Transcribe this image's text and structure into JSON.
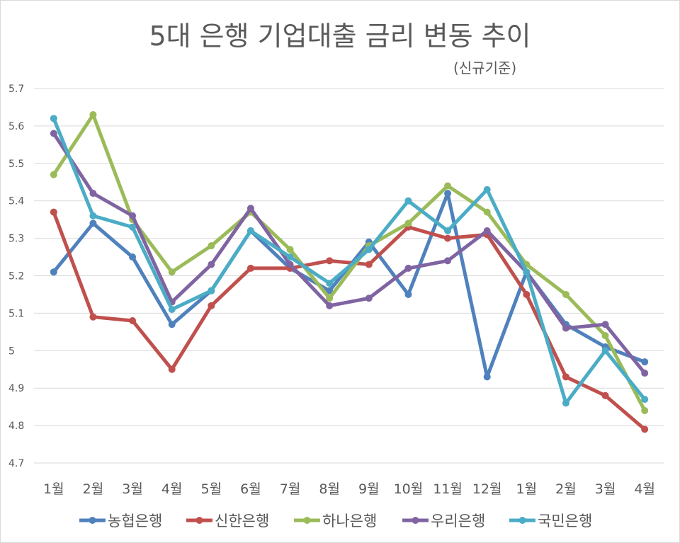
{
  "chart_data": {
    "type": "line",
    "title": "5대 은행 기업대출 금리 변동 추이",
    "subtitle": "(신규기준)",
    "categories": [
      "1월",
      "2월",
      "3월",
      "4월",
      "5월",
      "6월",
      "7월",
      "8월",
      "9월",
      "10월",
      "11월",
      "12월",
      "1월",
      "2월",
      "3월",
      "4월"
    ],
    "yticks": [
      "4.7",
      "4.8",
      "4.9",
      "5",
      "5.1",
      "5.2",
      "5.3",
      "5.4",
      "5.5",
      "5.6",
      "5.7"
    ],
    "ylim": [
      4.7,
      5.7
    ],
    "grid": true,
    "legend": "bottom",
    "series": [
      {
        "name": "농협은행",
        "color": "#4f81bd",
        "values": [
          5.21,
          5.34,
          5.25,
          5.07,
          5.16,
          5.32,
          5.22,
          5.16,
          5.29,
          5.15,
          5.42,
          4.93,
          5.21,
          5.07,
          5.01,
          4.97
        ]
      },
      {
        "name": "신한은행",
        "color": "#c0504d",
        "values": [
          5.37,
          5.09,
          5.08,
          4.95,
          5.12,
          5.22,
          5.22,
          5.24,
          5.23,
          5.33,
          5.3,
          5.31,
          5.15,
          4.93,
          4.88,
          4.79
        ]
      },
      {
        "name": "하나은행",
        "color": "#9bbb59",
        "values": [
          5.47,
          5.63,
          5.35,
          5.21,
          5.28,
          5.37,
          5.27,
          5.14,
          5.28,
          5.34,
          5.44,
          5.37,
          5.23,
          5.15,
          5.04,
          4.84
        ]
      },
      {
        "name": "우리은행",
        "color": "#8064a2",
        "values": [
          5.58,
          5.42,
          5.36,
          5.13,
          5.23,
          5.38,
          5.23,
          5.12,
          5.14,
          5.22,
          5.24,
          5.32,
          5.21,
          5.06,
          5.07,
          4.94
        ]
      },
      {
        "name": "국민은행",
        "color": "#4bacc6",
        "values": [
          5.62,
          5.36,
          5.33,
          5.11,
          5.16,
          5.32,
          5.25,
          5.18,
          5.27,
          5.4,
          5.32,
          5.43,
          5.21,
          4.86,
          5.0,
          4.87
        ]
      }
    ]
  }
}
